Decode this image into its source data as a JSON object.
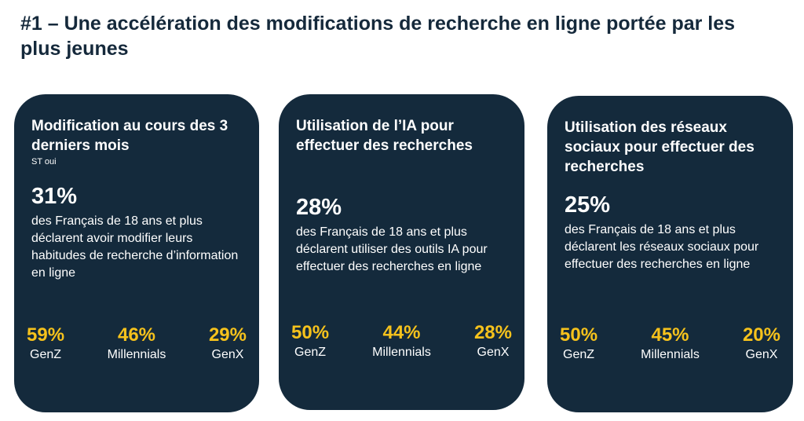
{
  "title": "#1 – Une accélération des modifications de recherche en ligne portée par les plus jeunes",
  "colors": {
    "card": "#142a3c",
    "accent": "#f6c21c",
    "title": "#15293b"
  },
  "cards": [
    {
      "heading": "Modification au cours des 3 derniers mois",
      "subheading": "ST oui",
      "value": "31%",
      "description": "des Français de 18 ans et plus déclarent avoir modifier leurs habitudes de recherche d’information en ligne",
      "stats": [
        {
          "value": "59%",
          "label": "GenZ"
        },
        {
          "value": "46%",
          "label": "Millennials"
        },
        {
          "value": "29%",
          "label": "GenX"
        }
      ]
    },
    {
      "heading": "Utilisation de l’IA pour effectuer des recherches",
      "value": "28%",
      "description": "des Français de 18 ans et plus déclarent utiliser des outils IA pour effectuer des recherches en ligne",
      "stats": [
        {
          "value": "50%",
          "label": "GenZ"
        },
        {
          "value": "44%",
          "label": "Millennials"
        },
        {
          "value": "28%",
          "label": "GenX"
        }
      ]
    },
    {
      "heading": "Utilisation des réseaux sociaux pour effectuer des recherches",
      "value": "25%",
      "description": "des Français de 18 ans et plus déclarent les réseaux sociaux pour effectuer des recherches en ligne",
      "stats": [
        {
          "value": "50%",
          "label": "GenZ"
        },
        {
          "value": "45%",
          "label": "Millennials"
        },
        {
          "value": "20%",
          "label": "GenX"
        }
      ]
    }
  ]
}
